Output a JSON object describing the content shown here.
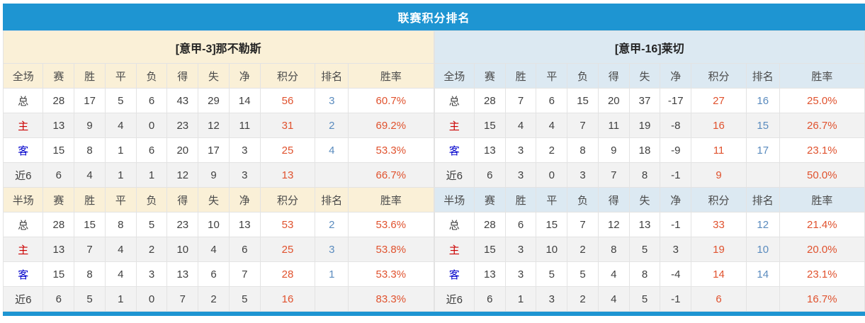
{
  "title": "联赛积分排名",
  "colors": {
    "accent_blue": "#1E95D2",
    "left_theme_cream": "#FAF0D7",
    "right_theme_blue": "#DCE9F2",
    "alt_row_gray": "#F2F2F2",
    "points_red": "#E0522E",
    "winrate_red": "#E0522E",
    "rank_blue": "#5A8BBE",
    "home_label_red": "#CC0000",
    "away_label_blue": "#0000CC",
    "border_gray": "#E3E3E3"
  },
  "tables": [
    {
      "team": "[意甲-3]那不勒斯",
      "theme": "cream",
      "sections": [
        {
          "scope_label": "全场",
          "columns": [
            "赛",
            "胜",
            "平",
            "负",
            "得",
            "失",
            "净",
            "积分",
            "排名",
            "胜率"
          ],
          "rows": [
            {
              "label": "总",
              "type": "total",
              "values": [
                "28",
                "17",
                "5",
                "6",
                "43",
                "29",
                "14"
              ],
              "points": "56",
              "rank": "3",
              "win_rate": "60.7%"
            },
            {
              "label": "主",
              "type": "home",
              "values": [
                "13",
                "9",
                "4",
                "0",
                "23",
                "12",
                "11"
              ],
              "points": "31",
              "rank": "2",
              "win_rate": "69.2%"
            },
            {
              "label": "客",
              "type": "away",
              "values": [
                "15",
                "8",
                "1",
                "6",
                "20",
                "17",
                "3"
              ],
              "points": "25",
              "rank": "4",
              "win_rate": "53.3%"
            },
            {
              "label": "近6",
              "type": "recent",
              "values": [
                "6",
                "4",
                "1",
                "1",
                "12",
                "9",
                "3"
              ],
              "points": "13",
              "rank": "",
              "win_rate": "66.7%"
            }
          ]
        },
        {
          "scope_label": "半场",
          "columns": [
            "赛",
            "胜",
            "平",
            "负",
            "得",
            "失",
            "净",
            "积分",
            "排名",
            "胜率"
          ],
          "rows": [
            {
              "label": "总",
              "type": "total",
              "values": [
                "28",
                "15",
                "8",
                "5",
                "23",
                "10",
                "13"
              ],
              "points": "53",
              "rank": "2",
              "win_rate": "53.6%"
            },
            {
              "label": "主",
              "type": "home",
              "values": [
                "13",
                "7",
                "4",
                "2",
                "10",
                "4",
                "6"
              ],
              "points": "25",
              "rank": "3",
              "win_rate": "53.8%"
            },
            {
              "label": "客",
              "type": "away",
              "values": [
                "15",
                "8",
                "4",
                "3",
                "13",
                "6",
                "7"
              ],
              "points": "28",
              "rank": "1",
              "win_rate": "53.3%"
            },
            {
              "label": "近6",
              "type": "recent",
              "values": [
                "6",
                "5",
                "1",
                "0",
                "7",
                "2",
                "5"
              ],
              "points": "16",
              "rank": "",
              "win_rate": "83.3%"
            }
          ]
        }
      ]
    },
    {
      "team": "[意甲-16]莱切",
      "theme": "blue",
      "sections": [
        {
          "scope_label": "全场",
          "columns": [
            "赛",
            "胜",
            "平",
            "负",
            "得",
            "失",
            "净",
            "积分",
            "排名",
            "胜率"
          ],
          "rows": [
            {
              "label": "总",
              "type": "total",
              "values": [
                "28",
                "7",
                "6",
                "15",
                "20",
                "37",
                "-17"
              ],
              "points": "27",
              "rank": "16",
              "win_rate": "25.0%"
            },
            {
              "label": "主",
              "type": "home",
              "values": [
                "15",
                "4",
                "4",
                "7",
                "11",
                "19",
                "-8"
              ],
              "points": "16",
              "rank": "15",
              "win_rate": "26.7%"
            },
            {
              "label": "客",
              "type": "away",
              "values": [
                "13",
                "3",
                "2",
                "8",
                "9",
                "18",
                "-9"
              ],
              "points": "11",
              "rank": "17",
              "win_rate": "23.1%"
            },
            {
              "label": "近6",
              "type": "recent",
              "values": [
                "6",
                "3",
                "0",
                "3",
                "7",
                "8",
                "-1"
              ],
              "points": "9",
              "rank": "",
              "win_rate": "50.0%"
            }
          ]
        },
        {
          "scope_label": "半场",
          "columns": [
            "赛",
            "胜",
            "平",
            "负",
            "得",
            "失",
            "净",
            "积分",
            "排名",
            "胜率"
          ],
          "rows": [
            {
              "label": "总",
              "type": "total",
              "values": [
                "28",
                "6",
                "15",
                "7",
                "12",
                "13",
                "-1"
              ],
              "points": "33",
              "rank": "12",
              "win_rate": "21.4%"
            },
            {
              "label": "主",
              "type": "home",
              "values": [
                "15",
                "3",
                "10",
                "2",
                "8",
                "5",
                "3"
              ],
              "points": "19",
              "rank": "10",
              "win_rate": "20.0%"
            },
            {
              "label": "客",
              "type": "away",
              "values": [
                "13",
                "3",
                "5",
                "5",
                "4",
                "8",
                "-4"
              ],
              "points": "14",
              "rank": "14",
              "win_rate": "23.1%"
            },
            {
              "label": "近6",
              "type": "recent",
              "values": [
                "6",
                "1",
                "3",
                "2",
                "4",
                "5",
                "-1"
              ],
              "points": "6",
              "rank": "",
              "win_rate": "16.7%"
            }
          ]
        }
      ]
    }
  ]
}
